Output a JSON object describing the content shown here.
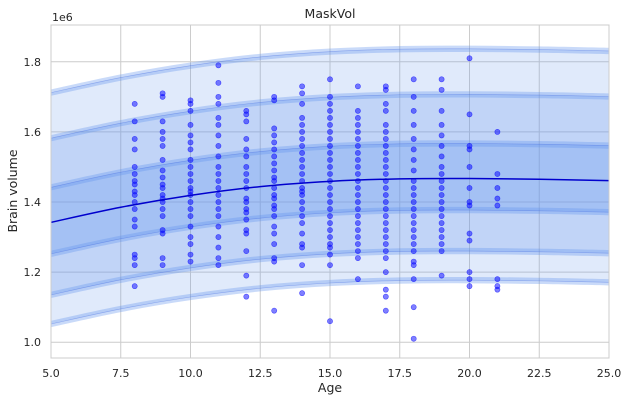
{
  "chart_data": {
    "type": "scatter",
    "title": "MaskVol",
    "xlabel": "Age",
    "ylabel": "Brain volume",
    "y_scale_label": "1e6",
    "xlim": [
      5.0,
      25.0
    ],
    "ylim": [
      0.955,
      1.905
    ],
    "x_ticks": [
      5.0,
      7.5,
      10.0,
      12.5,
      15.0,
      17.5,
      20.0,
      22.5,
      25.0
    ],
    "x_tick_labels": [
      "5.0",
      "7.5",
      "10.0",
      "12.5",
      "15.0",
      "17.5",
      "20.0",
      "22.5",
      "25.0"
    ],
    "y_ticks": [
      1.0,
      1.2,
      1.4,
      1.6,
      1.8
    ],
    "y_tick_labels": [
      "1.0",
      "1.2",
      "1.4",
      "1.6",
      "1.8"
    ],
    "grid": true,
    "colors": {
      "points": "#0000ff",
      "median_line": "#0000cd",
      "band_fill": "#6495ed",
      "band_edge": "#4169e1"
    },
    "centile_curve": {
      "x": [
        5.0,
        7.5,
        10.0,
        12.5,
        15.0,
        17.5,
        20.0,
        22.5,
        25.0
      ],
      "median": [
        1.342,
        1.385,
        1.419,
        1.444,
        1.459,
        1.466,
        1.467,
        1.465,
        1.461
      ],
      "bands": [
        {
          "lower": [
            1.052,
            1.095,
            1.129,
            1.154,
            1.169,
            1.176,
            1.177,
            1.175,
            1.171
          ],
          "upper": [
            1.712,
            1.755,
            1.789,
            1.814,
            1.829,
            1.836,
            1.837,
            1.835,
            1.831
          ]
        },
        {
          "lower": [
            1.135,
            1.178,
            1.212,
            1.237,
            1.252,
            1.259,
            1.26,
            1.258,
            1.254
          ],
          "upper": [
            1.582,
            1.625,
            1.659,
            1.684,
            1.699,
            1.706,
            1.707,
            1.705,
            1.701
          ]
        },
        {
          "lower": [
            1.252,
            1.295,
            1.329,
            1.354,
            1.369,
            1.376,
            1.377,
            1.375,
            1.371
          ],
          "upper": [
            1.442,
            1.485,
            1.519,
            1.544,
            1.559,
            1.566,
            1.567,
            1.565,
            1.561
          ]
        }
      ]
    },
    "points": [
      [
        8,
        1.68
      ],
      [
        8,
        1.63
      ],
      [
        8,
        1.58
      ],
      [
        8,
        1.55
      ],
      [
        8,
        1.5
      ],
      [
        8,
        1.48
      ],
      [
        8,
        1.46
      ],
      [
        8,
        1.45
      ],
      [
        8,
        1.43
      ],
      [
        8,
        1.42
      ],
      [
        8,
        1.4
      ],
      [
        8,
        1.38
      ],
      [
        8,
        1.35
      ],
      [
        8,
        1.33
      ],
      [
        8,
        1.25
      ],
      [
        8,
        1.24
      ],
      [
        8,
        1.22
      ],
      [
        8,
        1.16
      ],
      [
        9,
        1.71
      ],
      [
        9,
        1.7
      ],
      [
        9,
        1.63
      ],
      [
        9,
        1.6
      ],
      [
        9,
        1.58
      ],
      [
        9,
        1.56
      ],
      [
        9,
        1.52
      ],
      [
        9,
        1.49
      ],
      [
        9,
        1.47
      ],
      [
        9,
        1.45
      ],
      [
        9,
        1.44
      ],
      [
        9,
        1.42
      ],
      [
        9,
        1.41
      ],
      [
        9,
        1.4
      ],
      [
        9,
        1.38
      ],
      [
        9,
        1.36
      ],
      [
        9,
        1.32
      ],
      [
        9,
        1.31
      ],
      [
        9,
        1.24
      ],
      [
        9,
        1.22
      ],
      [
        10,
        1.69
      ],
      [
        10,
        1.68
      ],
      [
        10,
        1.66
      ],
      [
        10,
        1.62
      ],
      [
        10,
        1.59
      ],
      [
        10,
        1.57
      ],
      [
        10,
        1.55
      ],
      [
        10,
        1.52
      ],
      [
        10,
        1.5
      ],
      [
        10,
        1.48
      ],
      [
        10,
        1.46
      ],
      [
        10,
        1.44
      ],
      [
        10,
        1.43
      ],
      [
        10,
        1.42
      ],
      [
        10,
        1.4
      ],
      [
        10,
        1.38
      ],
      [
        10,
        1.36
      ],
      [
        10,
        1.33
      ],
      [
        10,
        1.3
      ],
      [
        10,
        1.28
      ],
      [
        10,
        1.25
      ],
      [
        10,
        1.23
      ],
      [
        11,
        1.79
      ],
      [
        11,
        1.74
      ],
      [
        11,
        1.7
      ],
      [
        11,
        1.68
      ],
      [
        11,
        1.64
      ],
      [
        11,
        1.62
      ],
      [
        11,
        1.59
      ],
      [
        11,
        1.56
      ],
      [
        11,
        1.53
      ],
      [
        11,
        1.5
      ],
      [
        11,
        1.48
      ],
      [
        11,
        1.46
      ],
      [
        11,
        1.44
      ],
      [
        11,
        1.42
      ],
      [
        11,
        1.4
      ],
      [
        11,
        1.38
      ],
      [
        11,
        1.36
      ],
      [
        11,
        1.33
      ],
      [
        11,
        1.3
      ],
      [
        11,
        1.27
      ],
      [
        11,
        1.24
      ],
      [
        11,
        1.22
      ],
      [
        12,
        1.66
      ],
      [
        12,
        1.65
      ],
      [
        12,
        1.63
      ],
      [
        12,
        1.58
      ],
      [
        12,
        1.55
      ],
      [
        12,
        1.53
      ],
      [
        12,
        1.5
      ],
      [
        12,
        1.48
      ],
      [
        12,
        1.46
      ],
      [
        12,
        1.44
      ],
      [
        12,
        1.41
      ],
      [
        12,
        1.4
      ],
      [
        12,
        1.38
      ],
      [
        12,
        1.37
      ],
      [
        12,
        1.35
      ],
      [
        12,
        1.32
      ],
      [
        12,
        1.31
      ],
      [
        12,
        1.26
      ],
      [
        12,
        1.19
      ],
      [
        12,
        1.13
      ],
      [
        13,
        1.7
      ],
      [
        13,
        1.69
      ],
      [
        13,
        1.61
      ],
      [
        13,
        1.59
      ],
      [
        13,
        1.57
      ],
      [
        13,
        1.55
      ],
      [
        13,
        1.53
      ],
      [
        13,
        1.51
      ],
      [
        13,
        1.49
      ],
      [
        13,
        1.47
      ],
      [
        13,
        1.46
      ],
      [
        13,
        1.44
      ],
      [
        13,
        1.42
      ],
      [
        13,
        1.41
      ],
      [
        13,
        1.39
      ],
      [
        13,
        1.38
      ],
      [
        13,
        1.36
      ],
      [
        13,
        1.33
      ],
      [
        13,
        1.31
      ],
      [
        13,
        1.28
      ],
      [
        13,
        1.24
      ],
      [
        13,
        1.23
      ],
      [
        13,
        1.09
      ],
      [
        14,
        1.73
      ],
      [
        14,
        1.71
      ],
      [
        14,
        1.68
      ],
      [
        14,
        1.64
      ],
      [
        14,
        1.62
      ],
      [
        14,
        1.6
      ],
      [
        14,
        1.58
      ],
      [
        14,
        1.56
      ],
      [
        14,
        1.54
      ],
      [
        14,
        1.52
      ],
      [
        14,
        1.5
      ],
      [
        14,
        1.48
      ],
      [
        14,
        1.46
      ],
      [
        14,
        1.44
      ],
      [
        14,
        1.43
      ],
      [
        14,
        1.42
      ],
      [
        14,
        1.4
      ],
      [
        14,
        1.38
      ],
      [
        14,
        1.36
      ],
      [
        14,
        1.34
      ],
      [
        14,
        1.31
      ],
      [
        14,
        1.28
      ],
      [
        14,
        1.27
      ],
      [
        14,
        1.22
      ],
      [
        14,
        1.14
      ],
      [
        15,
        1.75
      ],
      [
        15,
        1.7
      ],
      [
        15,
        1.68
      ],
      [
        15,
        1.66
      ],
      [
        15,
        1.64
      ],
      [
        15,
        1.62
      ],
      [
        15,
        1.6
      ],
      [
        15,
        1.58
      ],
      [
        15,
        1.56
      ],
      [
        15,
        1.54
      ],
      [
        15,
        1.52
      ],
      [
        15,
        1.5
      ],
      [
        15,
        1.48
      ],
      [
        15,
        1.46
      ],
      [
        15,
        1.44
      ],
      [
        15,
        1.42
      ],
      [
        15,
        1.4
      ],
      [
        15,
        1.38
      ],
      [
        15,
        1.36
      ],
      [
        15,
        1.34
      ],
      [
        15,
        1.32
      ],
      [
        15,
        1.3
      ],
      [
        15,
        1.28
      ],
      [
        15,
        1.27
      ],
      [
        15,
        1.25
      ],
      [
        15,
        1.22
      ],
      [
        15,
        1.06
      ],
      [
        16,
        1.73
      ],
      [
        16,
        1.66
      ],
      [
        16,
        1.64
      ],
      [
        16,
        1.62
      ],
      [
        16,
        1.6
      ],
      [
        16,
        1.58
      ],
      [
        16,
        1.56
      ],
      [
        16,
        1.54
      ],
      [
        16,
        1.52
      ],
      [
        16,
        1.5
      ],
      [
        16,
        1.48
      ],
      [
        16,
        1.46
      ],
      [
        16,
        1.44
      ],
      [
        16,
        1.42
      ],
      [
        16,
        1.4
      ],
      [
        16,
        1.38
      ],
      [
        16,
        1.36
      ],
      [
        16,
        1.34
      ],
      [
        16,
        1.32
      ],
      [
        16,
        1.3
      ],
      [
        16,
        1.28
      ],
      [
        16,
        1.26
      ],
      [
        16,
        1.24
      ],
      [
        16,
        1.18
      ],
      [
        17,
        1.73
      ],
      [
        17,
        1.72
      ],
      [
        17,
        1.68
      ],
      [
        17,
        1.66
      ],
      [
        17,
        1.62
      ],
      [
        17,
        1.6
      ],
      [
        17,
        1.58
      ],
      [
        17,
        1.56
      ],
      [
        17,
        1.54
      ],
      [
        17,
        1.52
      ],
      [
        17,
        1.5
      ],
      [
        17,
        1.48
      ],
      [
        17,
        1.46
      ],
      [
        17,
        1.44
      ],
      [
        17,
        1.42
      ],
      [
        17,
        1.4
      ],
      [
        17,
        1.38
      ],
      [
        17,
        1.36
      ],
      [
        17,
        1.34
      ],
      [
        17,
        1.32
      ],
      [
        17,
        1.3
      ],
      [
        17,
        1.28
      ],
      [
        17,
        1.26
      ],
      [
        17,
        1.24
      ],
      [
        17,
        1.2
      ],
      [
        17,
        1.15
      ],
      [
        17,
        1.13
      ],
      [
        17,
        1.09
      ],
      [
        18,
        1.75
      ],
      [
        18,
        1.7
      ],
      [
        18,
        1.66
      ],
      [
        18,
        1.62
      ],
      [
        18,
        1.58
      ],
      [
        18,
        1.55
      ],
      [
        18,
        1.52
      ],
      [
        18,
        1.49
      ],
      [
        18,
        1.46
      ],
      [
        18,
        1.44
      ],
      [
        18,
        1.42
      ],
      [
        18,
        1.4
      ],
      [
        18,
        1.38
      ],
      [
        18,
        1.36
      ],
      [
        18,
        1.34
      ],
      [
        18,
        1.32
      ],
      [
        18,
        1.3
      ],
      [
        18,
        1.28
      ],
      [
        18,
        1.26
      ],
      [
        18,
        1.23
      ],
      [
        18,
        1.22
      ],
      [
        18,
        1.18
      ],
      [
        18,
        1.1
      ],
      [
        18,
        1.01
      ],
      [
        19,
        1.75
      ],
      [
        19,
        1.72
      ],
      [
        19,
        1.66
      ],
      [
        19,
        1.62
      ],
      [
        19,
        1.59
      ],
      [
        19,
        1.56
      ],
      [
        19,
        1.53
      ],
      [
        19,
        1.5
      ],
      [
        19,
        1.48
      ],
      [
        19,
        1.46
      ],
      [
        19,
        1.44
      ],
      [
        19,
        1.42
      ],
      [
        19,
        1.4
      ],
      [
        19,
        1.38
      ],
      [
        19,
        1.36
      ],
      [
        19,
        1.34
      ],
      [
        19,
        1.32
      ],
      [
        19,
        1.3
      ],
      [
        19,
        1.28
      ],
      [
        19,
        1.26
      ],
      [
        19,
        1.19
      ],
      [
        20,
        1.81
      ],
      [
        20,
        1.65
      ],
      [
        20,
        1.56
      ],
      [
        20,
        1.55
      ],
      [
        20,
        1.5
      ],
      [
        20,
        1.44
      ],
      [
        20,
        1.4
      ],
      [
        20,
        1.39
      ],
      [
        20,
        1.31
      ],
      [
        20,
        1.29
      ],
      [
        20,
        1.2
      ],
      [
        20,
        1.18
      ],
      [
        20,
        1.16
      ],
      [
        21,
        1.6
      ],
      [
        21,
        1.48
      ],
      [
        21,
        1.44
      ],
      [
        21,
        1.41
      ],
      [
        21,
        1.39
      ],
      [
        21,
        1.18
      ],
      [
        21,
        1.16
      ],
      [
        21,
        1.15
      ]
    ]
  }
}
